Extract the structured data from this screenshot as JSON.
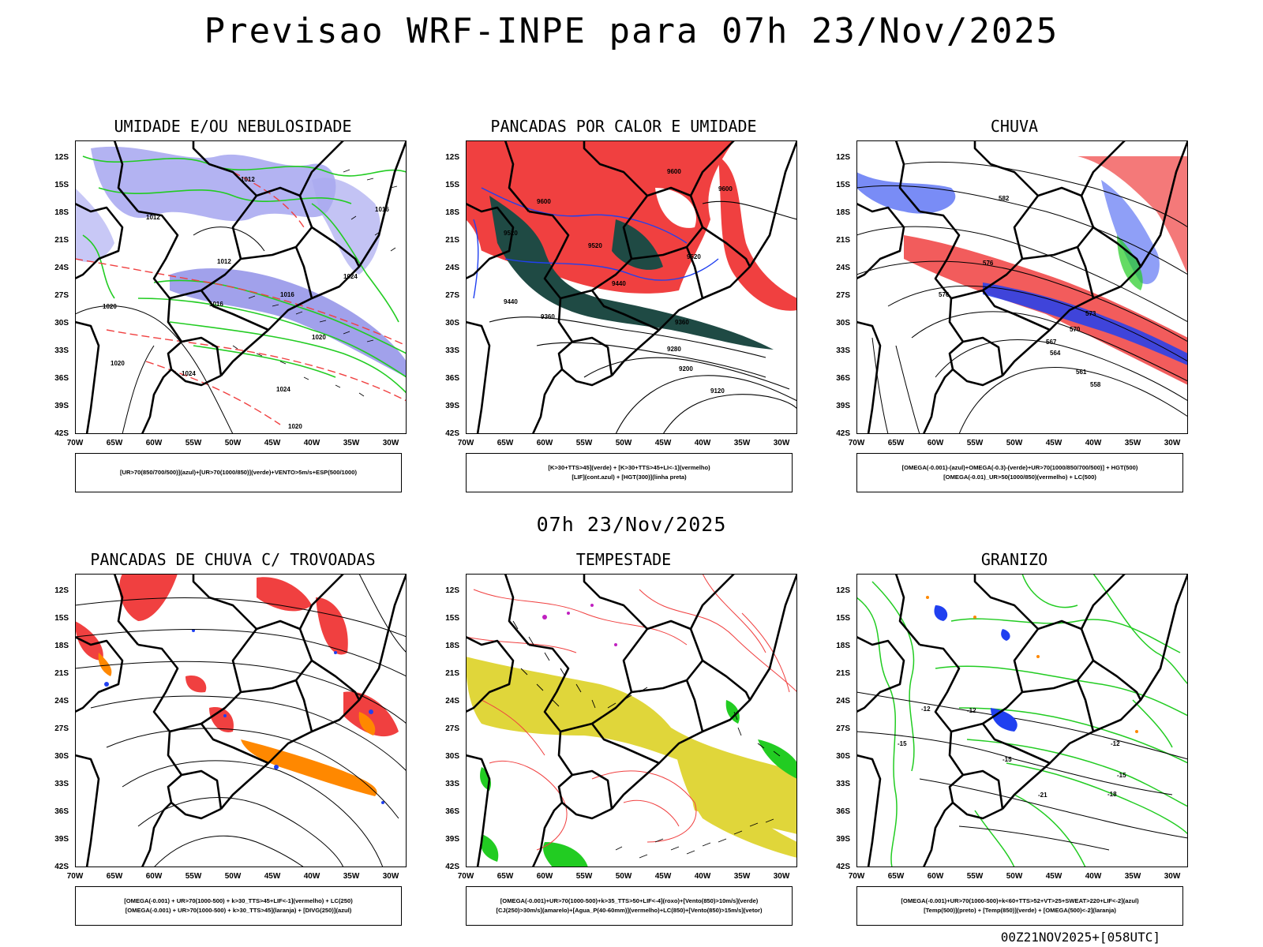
{
  "title": "Previsao WRF-INPE  para 07h 23/Nov/2025",
  "mid_title": "07h 23/Nov/2025",
  "footer": "00Z21NOV2025+[058UTC]",
  "lat_labels": [
    "12S",
    "15S",
    "18S",
    "21S",
    "24S",
    "27S",
    "30S",
    "33S",
    "36S",
    "39S",
    "42S"
  ],
  "lon_labels": [
    "70W",
    "65W",
    "60W",
    "55W",
    "50W",
    "45W",
    "40W",
    "35W",
    "30W"
  ],
  "colors": {
    "blue_fill": "#9a9aee",
    "green": "#22cc22",
    "red": "#f04040",
    "dark_teal": "#1f4a44",
    "yellow": "#e0d63a",
    "orange": "#ff8800",
    "purple": "#c020c0",
    "blue": "#2040f0"
  },
  "panels": [
    {
      "title": "UMIDADE E/OU NEBULOSIDADE",
      "legend": [
        "[UR>70(850/700/500)](azul)+[UR>70(1000/850)](verde)+VENTO>5m/s+ESP(500/1000)"
      ]
    },
    {
      "title": "PANCADAS POR CALOR E UMIDADE",
      "legend": [
        "[K>30+TTS>45](verde) + [K>30+TTS>45+LI<-1](vermelho)",
        "[LIF](cont.azul) + [HGT(300)](linha preta)"
      ]
    },
    {
      "title": "CHUVA",
      "legend": [
        "[OMEGA(-0.001)-(azul)+OMEGA(-0.3)-(verde)+UR>70(1000/850/700/500)] + HGT(500)",
        "[OMEGA(-0.01)_UR>50(1000/850)(vermelho) + LC(500)"
      ]
    },
    {
      "title": "PANCADAS DE CHUVA C/ TROVOADAS",
      "legend": [
        "[OMEGA(-0.001) + UR>70(1000-500) + k>30_TTS>45+LIF<-1](vermelho) + LC(250)",
        "[OMEGA(-0.001) + UR>70(1000-500) + k>30_TTS>45](laranja) + [DIVG(250)](azul)"
      ]
    },
    {
      "title": "TEMPESTADE",
      "legend": [
        "[OMEGA(-0.001)+UR>70(1000-500)+k>35_TTS>50+LIF<-4](roxo)+[Vento(850)>10m/s](verde)",
        "[CJ(250)>30m/s](amarelo)+[Agua_P(40-60mm)](vermelho)+LC(850)+[Vento(850)>15m/s](vetor)"
      ]
    },
    {
      "title": "GRANIZO",
      "legend": [
        "[OMEGA(-0.001)+UR>70(1000-500)+k<60+TTS>52+VT>25+SWEAT>220+LIF<-2](azul)",
        "[Temp(500)](preto) + [Temp(850)](verde) + [OMEGA(500)<-2](laranja)"
      ]
    }
  ],
  "contour_labels": {
    "p1": [
      "1012",
      "1012",
      "1016",
      "1020",
      "1020",
      "1024",
      "1024",
      "1016",
      "1020",
      "1016",
      "1024",
      "1012",
      "1020"
    ],
    "p2": [
      "9600",
      "9600",
      "9520",
      "9520",
      "9440",
      "9360",
      "9280",
      "9200",
      "9120",
      "9360",
      "9520",
      "9440",
      "9600"
    ],
    "p3": [
      "582",
      "576",
      "576",
      "573",
      "570",
      "567",
      "564",
      "561",
      "558"
    ],
    "p6": [
      "-12",
      "-15",
      "-15",
      "-12",
      "-18",
      "-21",
      "-15",
      "-12"
    ]
  }
}
